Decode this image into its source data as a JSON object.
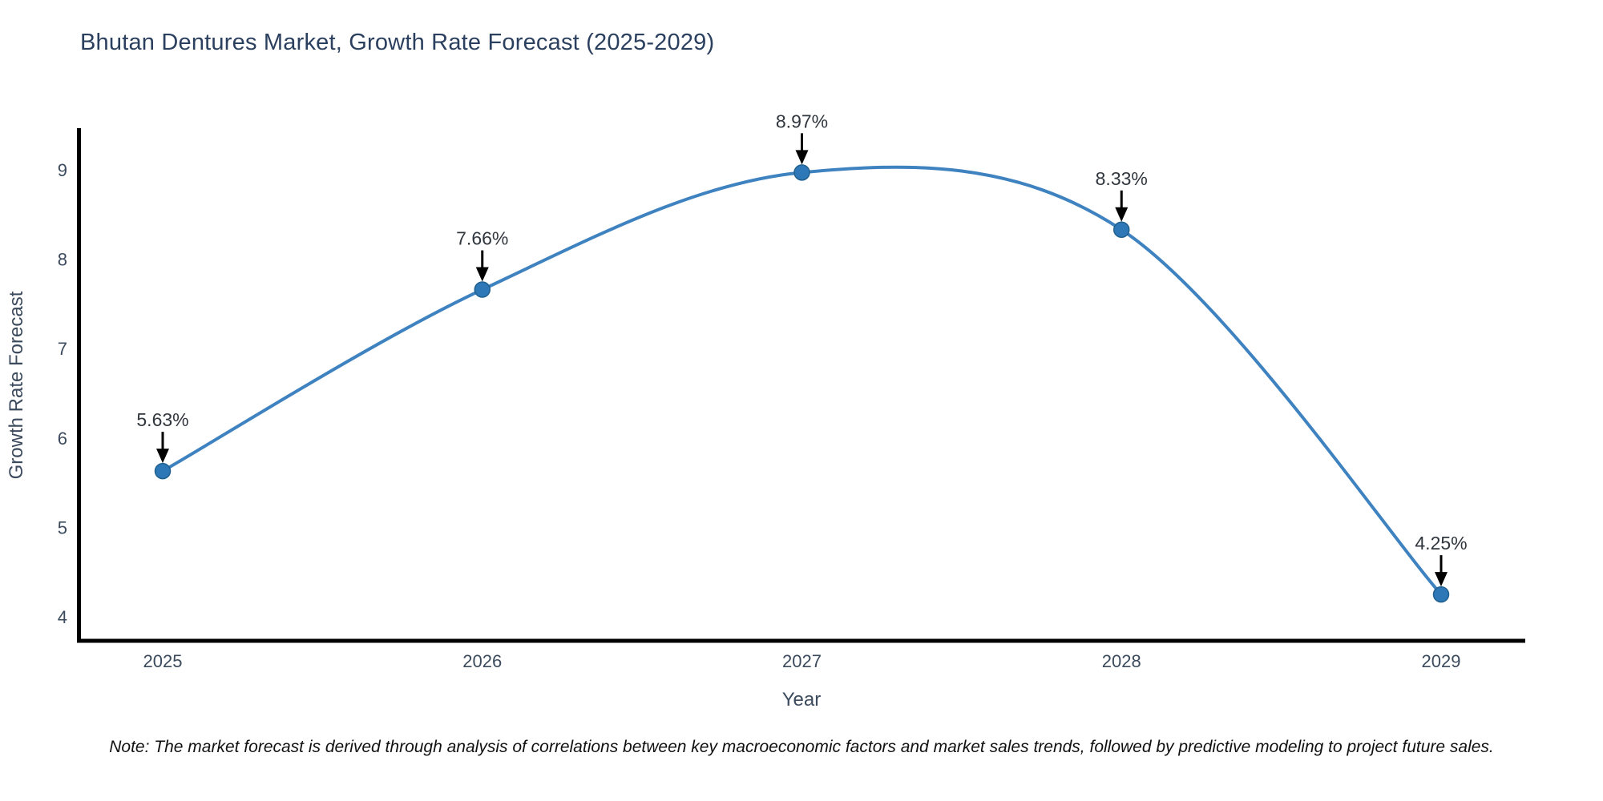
{
  "note": "Note: The market forecast is derived through analysis of correlations between key macroeconomic factors and market sales trends, followed by predictive modeling to project future sales.",
  "colors": {
    "line": "#3e82c0",
    "marker": "#2e78b7",
    "marker_edge": "#20608f",
    "axis": "#000000",
    "title_text": "#2b3f5e",
    "tick_text": "#3b4a5c",
    "annotation_text": "#30363d",
    "arrow": "#000000",
    "note_text": "#111111"
  },
  "chart_data": {
    "type": "line",
    "title": "Bhutan Dentures Market, Growth Rate Forecast (2025-2029)",
    "xlabel": "Year",
    "ylabel": "Growth Rate Forecast",
    "x": [
      2025,
      2026,
      2027,
      2028,
      2029
    ],
    "values": [
      5.63,
      7.66,
      8.97,
      8.33,
      4.25
    ],
    "point_labels": [
      "5.63%",
      "7.66%",
      "8.97%",
      "8.33%",
      "4.25%"
    ],
    "xticks": [
      "2025",
      "2026",
      "2027",
      "2028",
      "2029"
    ],
    "yticks": [
      4,
      5,
      6,
      7,
      8,
      9
    ],
    "xlim": [
      2024.74,
      2029.26
    ],
    "ylim": [
      3.72,
      9.47
    ],
    "line_shape": "spline",
    "grid": false,
    "legend": false,
    "annotation_style": "value label with downward arrow above each data point"
  }
}
